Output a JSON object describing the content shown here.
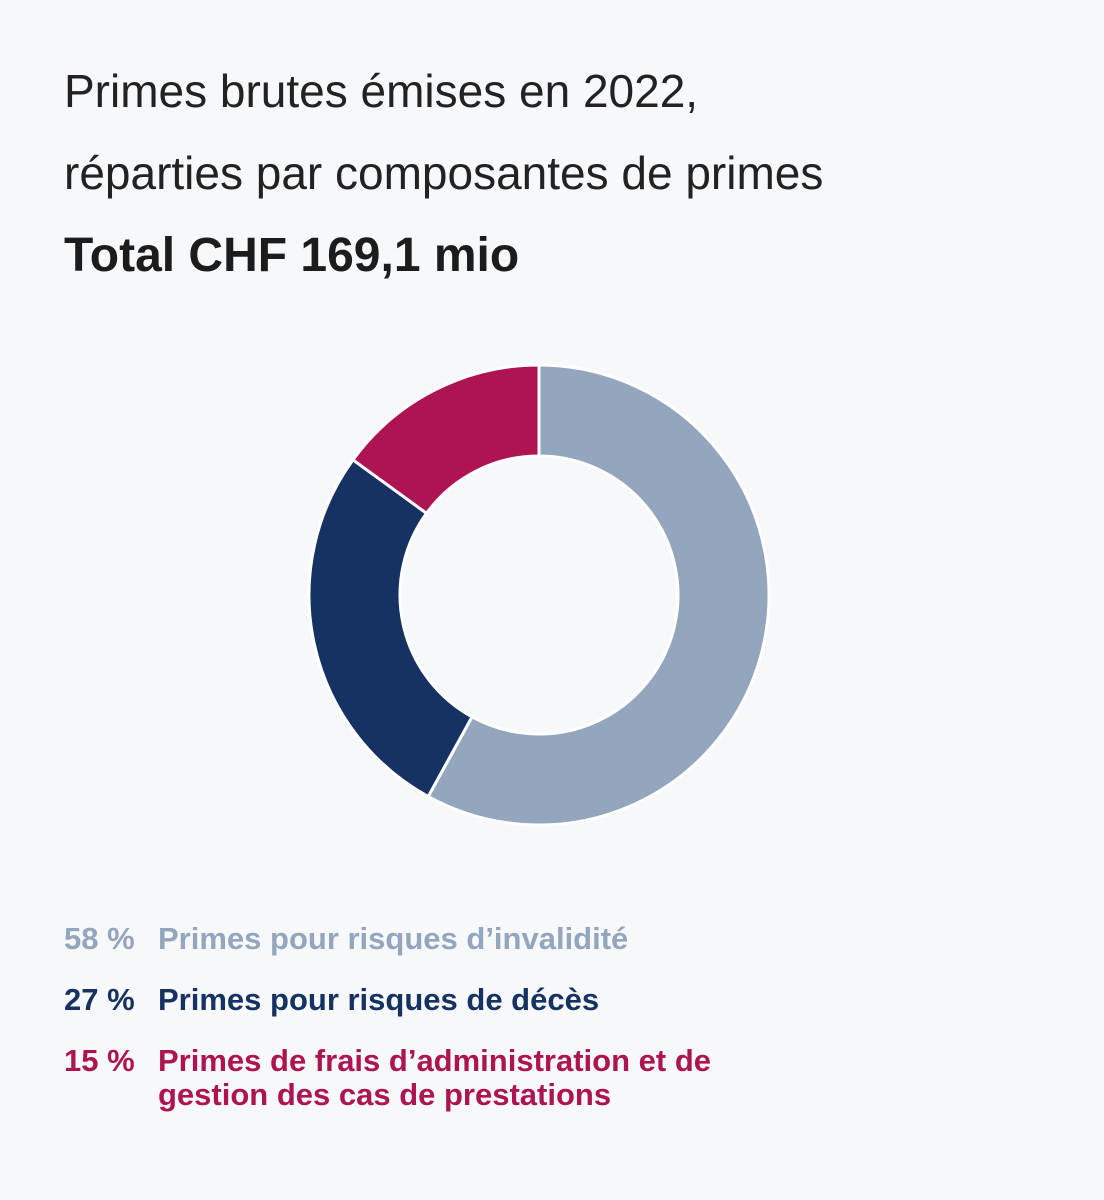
{
  "header": {
    "title_line1": "Primes brutes émises en 2022,",
    "title_line2": "réparties par composantes de primes",
    "total": "Total CHF 169,1 mio"
  },
  "chart_data": {
    "type": "pie",
    "variant": "donut",
    "unit": "%",
    "slices": [
      {
        "label": "Primes pour risques d’invalidité",
        "value": 58,
        "pct_label": "58 %",
        "color": "#93a6be"
      },
      {
        "label": "Primes pour risques de décès",
        "value": 27,
        "pct_label": "27 %",
        "color": "#163263"
      },
      {
        "label": "Primes de frais d’administration et de gestion des cas de prestations",
        "value": 15,
        "pct_label": "15 %",
        "color": "#ad1451"
      }
    ],
    "legend_position": "bottom-left"
  },
  "colors": {
    "background": "#f7f8fa",
    "slice_separator": "#ffffff"
  }
}
